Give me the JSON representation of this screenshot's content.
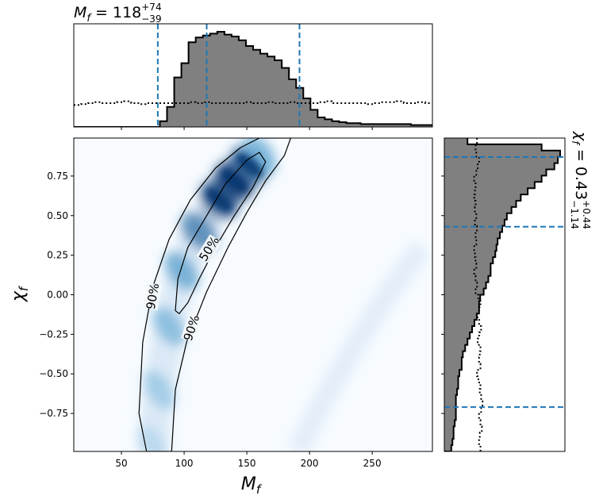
{
  "chart_data": [
    {
      "type": "heatmap",
      "panel": "joint",
      "xlabel": "M",
      "xlabel_sub": "f",
      "ylabel": "χ",
      "ylabel_sub": "f",
      "xlim": [
        12,
        298
      ],
      "ylim": [
        -0.99,
        0.99
      ],
      "xticks": [
        50,
        100,
        150,
        200,
        250
      ],
      "yticks": [
        -0.75,
        -0.5,
        -0.25,
        0.0,
        0.25,
        0.5,
        0.75
      ],
      "ytick_labels": [
        "−0.75",
        "−0.50",
        "−0.25",
        "0.00",
        "0.25",
        "0.50",
        "0.75"
      ],
      "colormap": "Blues",
      "density_ridge": [
        {
          "x": 75,
          "y": -0.95,
          "w": 0.25
        },
        {
          "x": 80,
          "y": -0.6,
          "w": 0.35
        },
        {
          "x": 88,
          "y": -0.2,
          "w": 0.45
        },
        {
          "x": 98,
          "y": 0.15,
          "w": 0.55
        },
        {
          "x": 112,
          "y": 0.4,
          "w": 0.7
        },
        {
          "x": 128,
          "y": 0.6,
          "w": 0.9
        },
        {
          "x": 140,
          "y": 0.72,
          "w": 1.0
        },
        {
          "x": 152,
          "y": 0.82,
          "w": 0.85
        },
        {
          "x": 160,
          "y": 0.88,
          "w": 0.5
        }
      ],
      "contour_color": "#000000",
      "contours": [
        {
          "label": "90%",
          "points": [
            [
              70,
              -0.99
            ],
            [
              64,
              -0.75
            ],
            [
              67,
              -0.3
            ],
            [
              75,
              0.05
            ],
            [
              88,
              0.35
            ],
            [
              105,
              0.6
            ],
            [
              125,
              0.8
            ],
            [
              145,
              0.93
            ],
            [
              160,
              0.99
            ],
            [
              185,
              0.99
            ],
            [
              180,
              0.88
            ],
            [
              165,
              0.72
            ],
            [
              150,
              0.52
            ],
            [
              135,
              0.3
            ],
            [
              118,
              0.02
            ],
            [
              102,
              -0.3
            ],
            [
              93,
              -0.6
            ],
            [
              90,
              -0.99
            ]
          ]
        },
        {
          "label": "50%",
          "points": [
            [
              93,
              -0.1
            ],
            [
              95,
              0.1
            ],
            [
              103,
              0.3
            ],
            [
              118,
              0.5
            ],
            [
              133,
              0.7
            ],
            [
              150,
              0.85
            ],
            [
              160,
              0.9
            ],
            [
              165,
              0.84
            ],
            [
              155,
              0.68
            ],
            [
              140,
              0.5
            ],
            [
              125,
              0.3
            ],
            [
              112,
              0.1
            ],
            [
              103,
              -0.05
            ],
            [
              96,
              -0.12
            ]
          ]
        }
      ],
      "contour_labels": [
        {
          "text": "90%",
          "x": 75,
          "y": -0.01,
          "angle": -80
        },
        {
          "text": "90%",
          "x": 106,
          "y": -0.21,
          "angle": -72
        },
        {
          "text": "50%",
          "x": 120,
          "y": 0.29,
          "angle": -58
        }
      ]
    },
    {
      "type": "bar",
      "panel": "top-marginal",
      "title_var": "M",
      "title_sub": "f",
      "title_value": " = 118",
      "title_plus": "+74",
      "title_minus": "−39",
      "xlim": [
        12,
        298
      ],
      "bin_edges_start": 12,
      "bin_width": 5.72,
      "values": [
        0,
        0,
        0,
        0,
        0,
        0,
        0,
        0,
        0,
        0,
        0,
        0,
        0.06,
        0.21,
        0.52,
        0.67,
        0.89,
        0.94,
        0.96,
        0.98,
        1.0,
        0.97,
        0.95,
        0.91,
        0.85,
        0.81,
        0.77,
        0.74,
        0.7,
        0.62,
        0.5,
        0.41,
        0.3,
        0.18,
        0.1,
        0.08,
        0.06,
        0.05,
        0.04,
        0.04,
        0.03,
        0.03,
        0.03,
        0.03,
        0.03,
        0.03,
        0.03,
        0.02,
        0.02,
        0.02
      ],
      "prior": [
        0.23,
        0.24,
        0.25,
        0.26,
        0.25,
        0.25,
        0.26,
        0.27,
        0.25,
        0.24,
        0.25,
        0.25,
        0.25,
        0.25,
        0.25,
        0.25,
        0.26,
        0.25,
        0.26,
        0.25,
        0.25,
        0.25,
        0.25,
        0.25,
        0.26,
        0.25,
        0.25,
        0.26,
        0.25,
        0.25,
        0.26,
        0.25,
        0.25,
        0.25,
        0.26,
        0.27,
        0.25,
        0.25,
        0.25,
        0.25,
        0.25,
        0.24,
        0.25,
        0.26,
        0.26,
        0.27,
        0.25,
        0.25,
        0.26,
        0.25
      ],
      "quantiles": [
        79,
        118,
        192
      ],
      "fill_color": "#808080",
      "line_color": "#1f77b4"
    },
    {
      "type": "bar",
      "panel": "right-marginal",
      "title_var": "χ",
      "title_sub": "f",
      "title_value": " = 0.43",
      "title_plus": "+0.44",
      "title_minus": "−1.14",
      "ylim": [
        -0.99,
        0.99
      ],
      "bin_edges_start": -0.99,
      "bin_width": 0.0396,
      "values": [
        0.06,
        0.07,
        0.08,
        0.08,
        0.09,
        0.1,
        0.1,
        0.1,
        0.1,
        0.11,
        0.12,
        0.12,
        0.13,
        0.15,
        0.15,
        0.16,
        0.18,
        0.2,
        0.22,
        0.24,
        0.26,
        0.28,
        0.3,
        0.3,
        0.31,
        0.34,
        0.36,
        0.38,
        0.4,
        0.4,
        0.42,
        0.44,
        0.45,
        0.46,
        0.48,
        0.5,
        0.52,
        0.54,
        0.58,
        0.62,
        0.66,
        0.72,
        0.78,
        0.84,
        0.88,
        0.95,
        0.98,
        1.0,
        0.84,
        0.2
      ],
      "prior": [
        0.52,
        0.5,
        0.51,
        0.54,
        0.52,
        0.5,
        0.53,
        0.55,
        0.53,
        0.51,
        0.52,
        0.49,
        0.47,
        0.52,
        0.5,
        0.51,
        0.52,
        0.48,
        0.5,
        0.53,
        0.5,
        0.48,
        0.5,
        0.52,
        0.49,
        0.45,
        0.47,
        0.45,
        0.43,
        0.46,
        0.45,
        0.44,
        0.43,
        0.46,
        0.45,
        0.47,
        0.44,
        0.46,
        0.44,
        0.45,
        0.43,
        0.44,
        0.45,
        0.43,
        0.46,
        0.48,
        0.5,
        0.46,
        0.45,
        0.47
      ],
      "quantiles": [
        -0.71,
        0.43,
        0.87
      ],
      "fill_color": "#808080",
      "line_color": "#1f77b4"
    }
  ]
}
